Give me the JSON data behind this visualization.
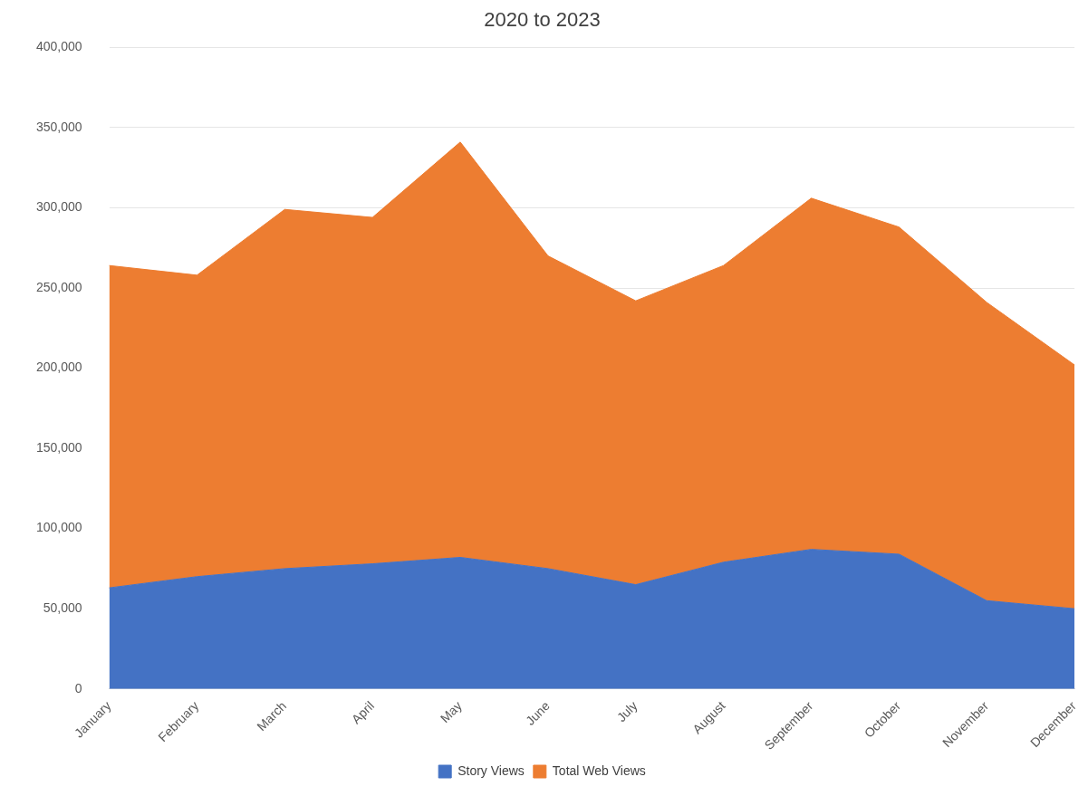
{
  "chart_data": {
    "type": "area",
    "title": "2020 to 2023",
    "stacked": true,
    "categories": [
      "January",
      "February",
      "March",
      "April",
      "May",
      "June",
      "July",
      "August",
      "September",
      "October",
      "November",
      "December"
    ],
    "series": [
      {
        "name": "Story Views",
        "color": "#4472c4",
        "values": [
          63000,
          70000,
          75000,
          78000,
          82000,
          75000,
          65000,
          79000,
          87000,
          84000,
          55000,
          50000
        ]
      },
      {
        "name": "Total Web Views",
        "color": "#ed7d31",
        "values": [
          201000,
          188000,
          224000,
          216000,
          259000,
          195000,
          177000,
          185000,
          219000,
          204000,
          186000,
          152000
        ]
      }
    ],
    "ylim": [
      0,
      400000
    ],
    "yticks": [
      0,
      {
        "value": 50000,
        "label": "50,000"
      },
      {
        "value": 100000,
        "label": "100,000"
      },
      {
        "value": 150000,
        "label": "150,000"
      },
      {
        "value": 200000,
        "label": "200,000"
      },
      {
        "value": 250000,
        "label": "250,000"
      },
      {
        "value": 300000,
        "label": "300,000"
      },
      {
        "value": 350000,
        "label": "350,000"
      },
      {
        "value": 400000,
        "label": "400,000"
      }
    ],
    "grid": "y",
    "legend": "bottom"
  }
}
